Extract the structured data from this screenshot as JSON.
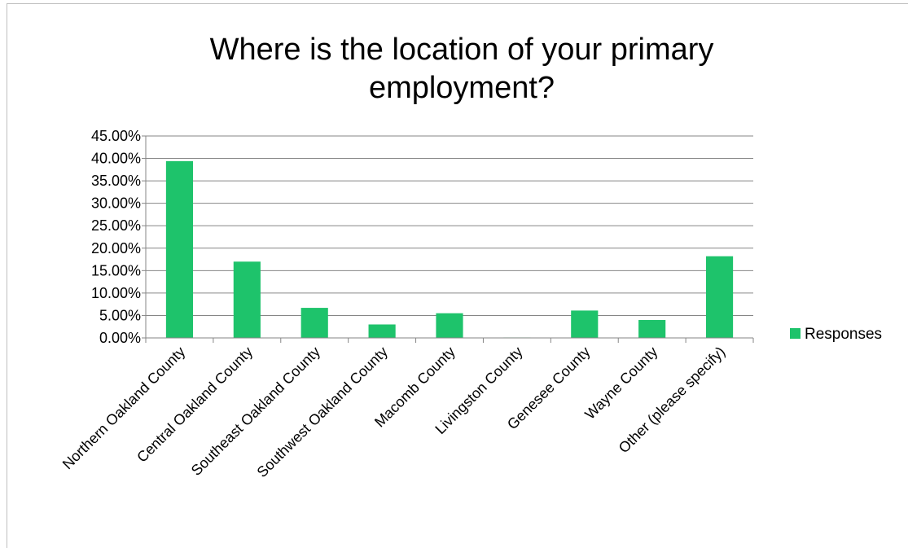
{
  "chart_data": {
    "type": "bar",
    "title_lines": [
      "Where is the location of your primary",
      "employment?"
    ],
    "categories": [
      "Northern Oakland County",
      "Central Oakland County",
      "Southeast Oakland County",
      "Southwest Oakland County",
      "Macomb County",
      "Livingston County",
      "Genesee County",
      "Wayne County",
      "Other (please specify)"
    ],
    "series": [
      {
        "name": "Responses",
        "color": "#1ec36b",
        "values": [
          39.4,
          17.0,
          6.7,
          3.0,
          5.5,
          0.1,
          6.1,
          4.0,
          18.2
        ]
      }
    ],
    "y_ticks": [
      "0.00%",
      "5.00%",
      "10.00%",
      "15.00%",
      "20.00%",
      "25.00%",
      "30.00%",
      "35.00%",
      "40.00%",
      "45.00%"
    ],
    "ylim": [
      0,
      45
    ],
    "y_step": 5,
    "grid": true,
    "legend_position": "right"
  }
}
